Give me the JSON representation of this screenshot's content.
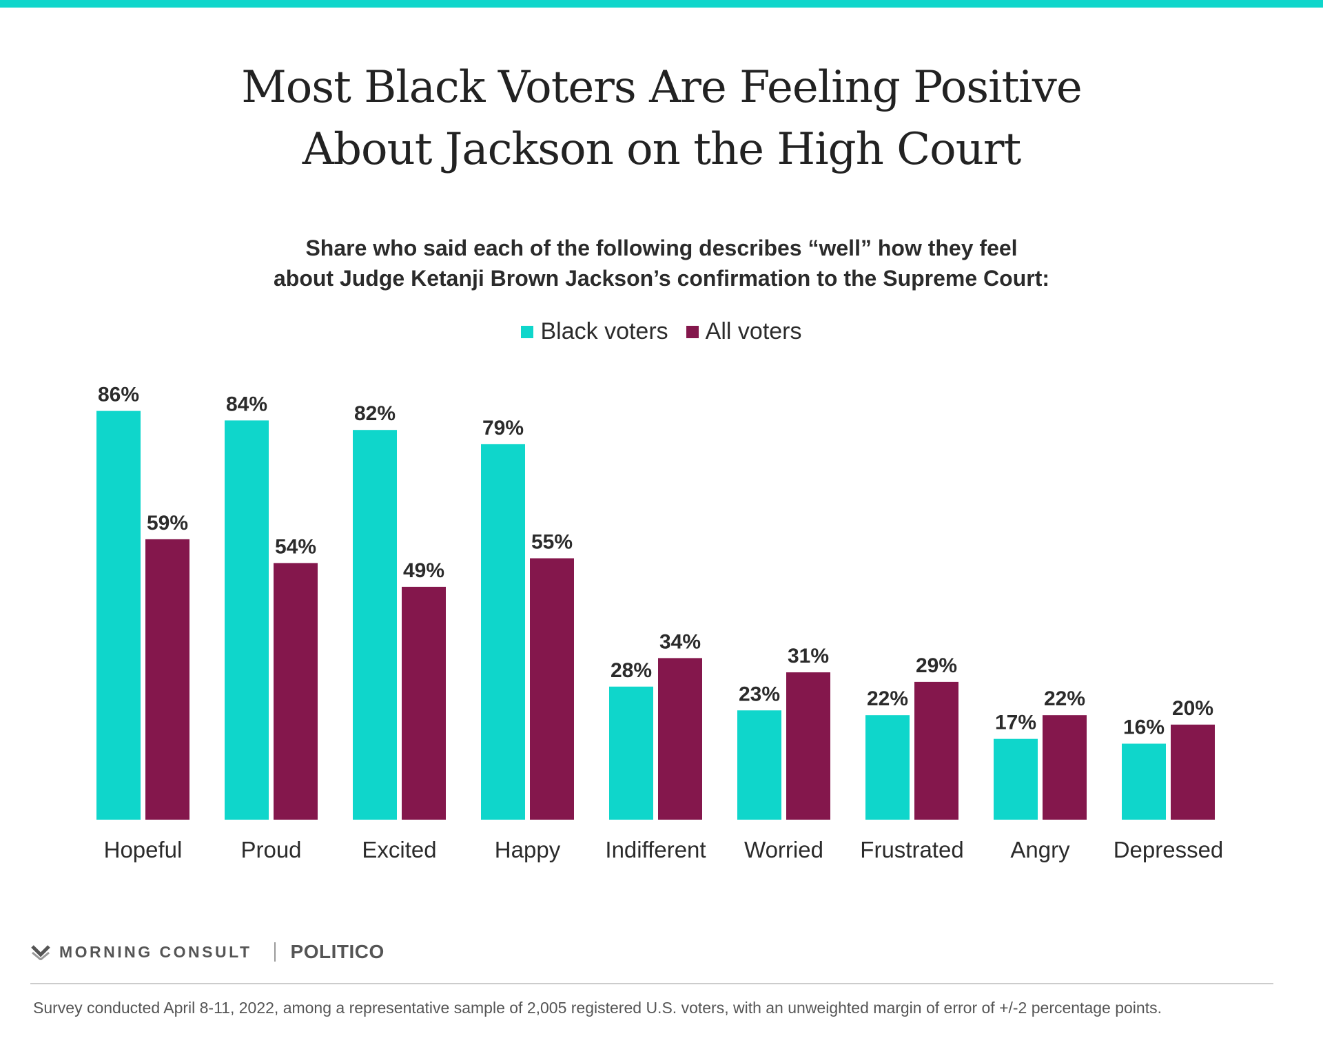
{
  "title_lines": [
    "Most Black Voters Are Feeling Positive",
    "About Jackson on the High Court"
  ],
  "subtitle_lines": [
    "Share who said each of the following describes “well” how they feel",
    "about Judge Ketanji Brown Jackson’s confirmation to the Supreme Court:"
  ],
  "colors": {
    "black_voters": "#0fd6cb",
    "all_voters": "#84174c",
    "accent_bar": "#0fd6cb",
    "text": "#222222"
  },
  "footer": {
    "brand": "MORNING CONSULT",
    "partner": "POLITICO",
    "icon": "morning-consult-chevron-icon",
    "note": "Survey conducted April 8-11, 2022, among a representative sample of 2,005 registered U.S. voters, with an unweighted margin of error of +/-2 percentage points."
  },
  "chart_data": {
    "type": "bar",
    "title": "Most Black Voters Are Feeling Positive About Jackson on the High Court",
    "subtitle": "Share who said each of the following describes “well” how they feel about Judge Ketanji Brown Jackson’s confirmation to the Supreme Court:",
    "categories": [
      "Hopeful",
      "Proud",
      "Excited",
      "Happy",
      "Indifferent",
      "Worried",
      "Frustrated",
      "Angry",
      "Depressed"
    ],
    "series": [
      {
        "name": "Black voters",
        "values": [
          86,
          84,
          82,
          79,
          28,
          23,
          22,
          17,
          16
        ],
        "labels": [
          "86%",
          "84%",
          "82%",
          "79%",
          "28%",
          "23%",
          "22%",
          "17%",
          "16%"
        ]
      },
      {
        "name": "All voters",
        "values": [
          59,
          54,
          49,
          55,
          34,
          31,
          29,
          22,
          20
        ],
        "labels": [
          "59%",
          "54%",
          "49%",
          "55%",
          "34%",
          "31%",
          "29%",
          "22%",
          "20%"
        ]
      }
    ],
    "ylim": [
      0,
      100
    ],
    "grid": false,
    "legend_position": "top-center"
  }
}
